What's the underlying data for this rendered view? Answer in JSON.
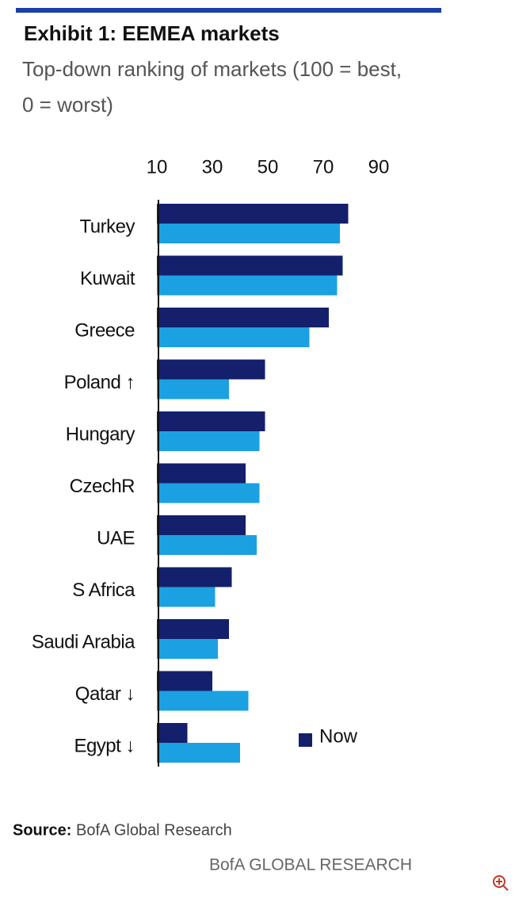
{
  "chart_data": {
    "type": "bar",
    "orientation": "horizontal",
    "title": "Exhibit 1: EEMEA markets",
    "subtitle": [
      "Top-down ranking of markets (100 = best,",
      "0 = worst)"
    ],
    "categories": [
      "Turkey",
      "Kuwait",
      "Greece",
      "Poland ↑",
      "Hungary",
      "CzechR",
      "UAE",
      "S Africa",
      "Saudi Arabia",
      "Qatar ↓",
      "Egypt ↓"
    ],
    "series": [
      {
        "name": "Now",
        "color": "#14206b",
        "values": [
          79,
          77,
          72,
          49,
          49,
          42,
          42,
          37,
          36,
          30,
          21
        ]
      },
      {
        "color": "#1ba1e2",
        "values": [
          76,
          75,
          65,
          36,
          47,
          47,
          46,
          31,
          32,
          43,
          40
        ]
      }
    ],
    "xlim": [
      10,
      100
    ],
    "xticks": [
      10,
      30,
      50,
      70,
      90
    ],
    "legend": "bottom-right",
    "source": {
      "label": "Source:",
      "text": "BofA Global Research"
    },
    "footer": "BofA GLOBAL RESEARCH"
  }
}
